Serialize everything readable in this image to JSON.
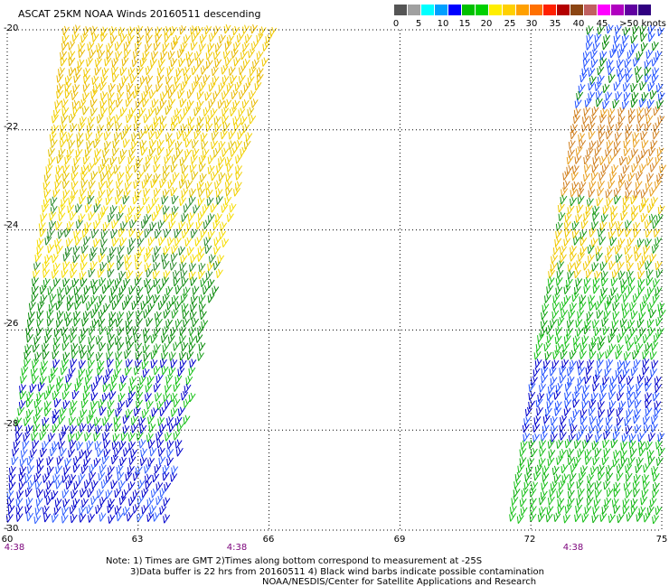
{
  "title": "ASCAT 25KM NOAA Winds 20160511 descending",
  "legend": {
    "colors": [
      "#555555",
      "#a0a0a0",
      "#00ffff",
      "#00a0ff",
      "#0000ff",
      "#00c000",
      "#00d000",
      "#ffee00",
      "#ffd000",
      "#ffa000",
      "#ff7000",
      "#ff2000",
      "#b40000",
      "#8b4513",
      "#c06060",
      "#ff00ff",
      "#b000c0",
      "#6000a0",
      "#300080"
    ],
    "ticks": [
      "0",
      "5",
      "10",
      "15",
      "20",
      "25",
      "30",
      "35",
      "40",
      "45",
      ">50 knots"
    ]
  },
  "axes": {
    "lat_ticks": [
      "-20",
      "-22",
      "-24",
      "-26",
      "-28",
      "-30"
    ],
    "lon_ticks": [
      "60",
      "63",
      "66",
      "69",
      "72",
      "75"
    ]
  },
  "times": [
    "4:38",
    "4:38",
    "4:38"
  ],
  "notes": [
    "Note: 1) Times are GMT 2)Times along bottom correspond to measurement at -25S",
    "3)Data buffer is 22 hrs from 20160511 4) Black wind barbs indicate possible contamination",
    "NOAA/NESDIS/Center for Satellite Applications and Research"
  ],
  "swaths": [
    {
      "name": "west-swath",
      "colors_by_lat": [
        [
          "#f0c800",
          "#e8b800"
        ],
        [
          "#f2d000",
          "#e0c000"
        ],
        [
          "#f5dc00",
          "#2a8a2a"
        ],
        [
          "#0a8a0a",
          "#1aa01a"
        ],
        [
          "#18c018",
          "#0000cc"
        ],
        [
          "#0000cc",
          "#3060ff"
        ]
      ]
    },
    {
      "name": "east-swath",
      "colors_by_lat": [
        [
          "#2050ff",
          "#0a8a0a"
        ],
        [
          "#d08020",
          "#e8a020"
        ],
        [
          "#f0c800",
          "#1a9a1a"
        ],
        [
          "#18c018",
          "#0aa00a"
        ],
        [
          "#2050ff",
          "#0000cc"
        ],
        [
          "#18c018",
          "#10b010"
        ]
      ]
    }
  ]
}
